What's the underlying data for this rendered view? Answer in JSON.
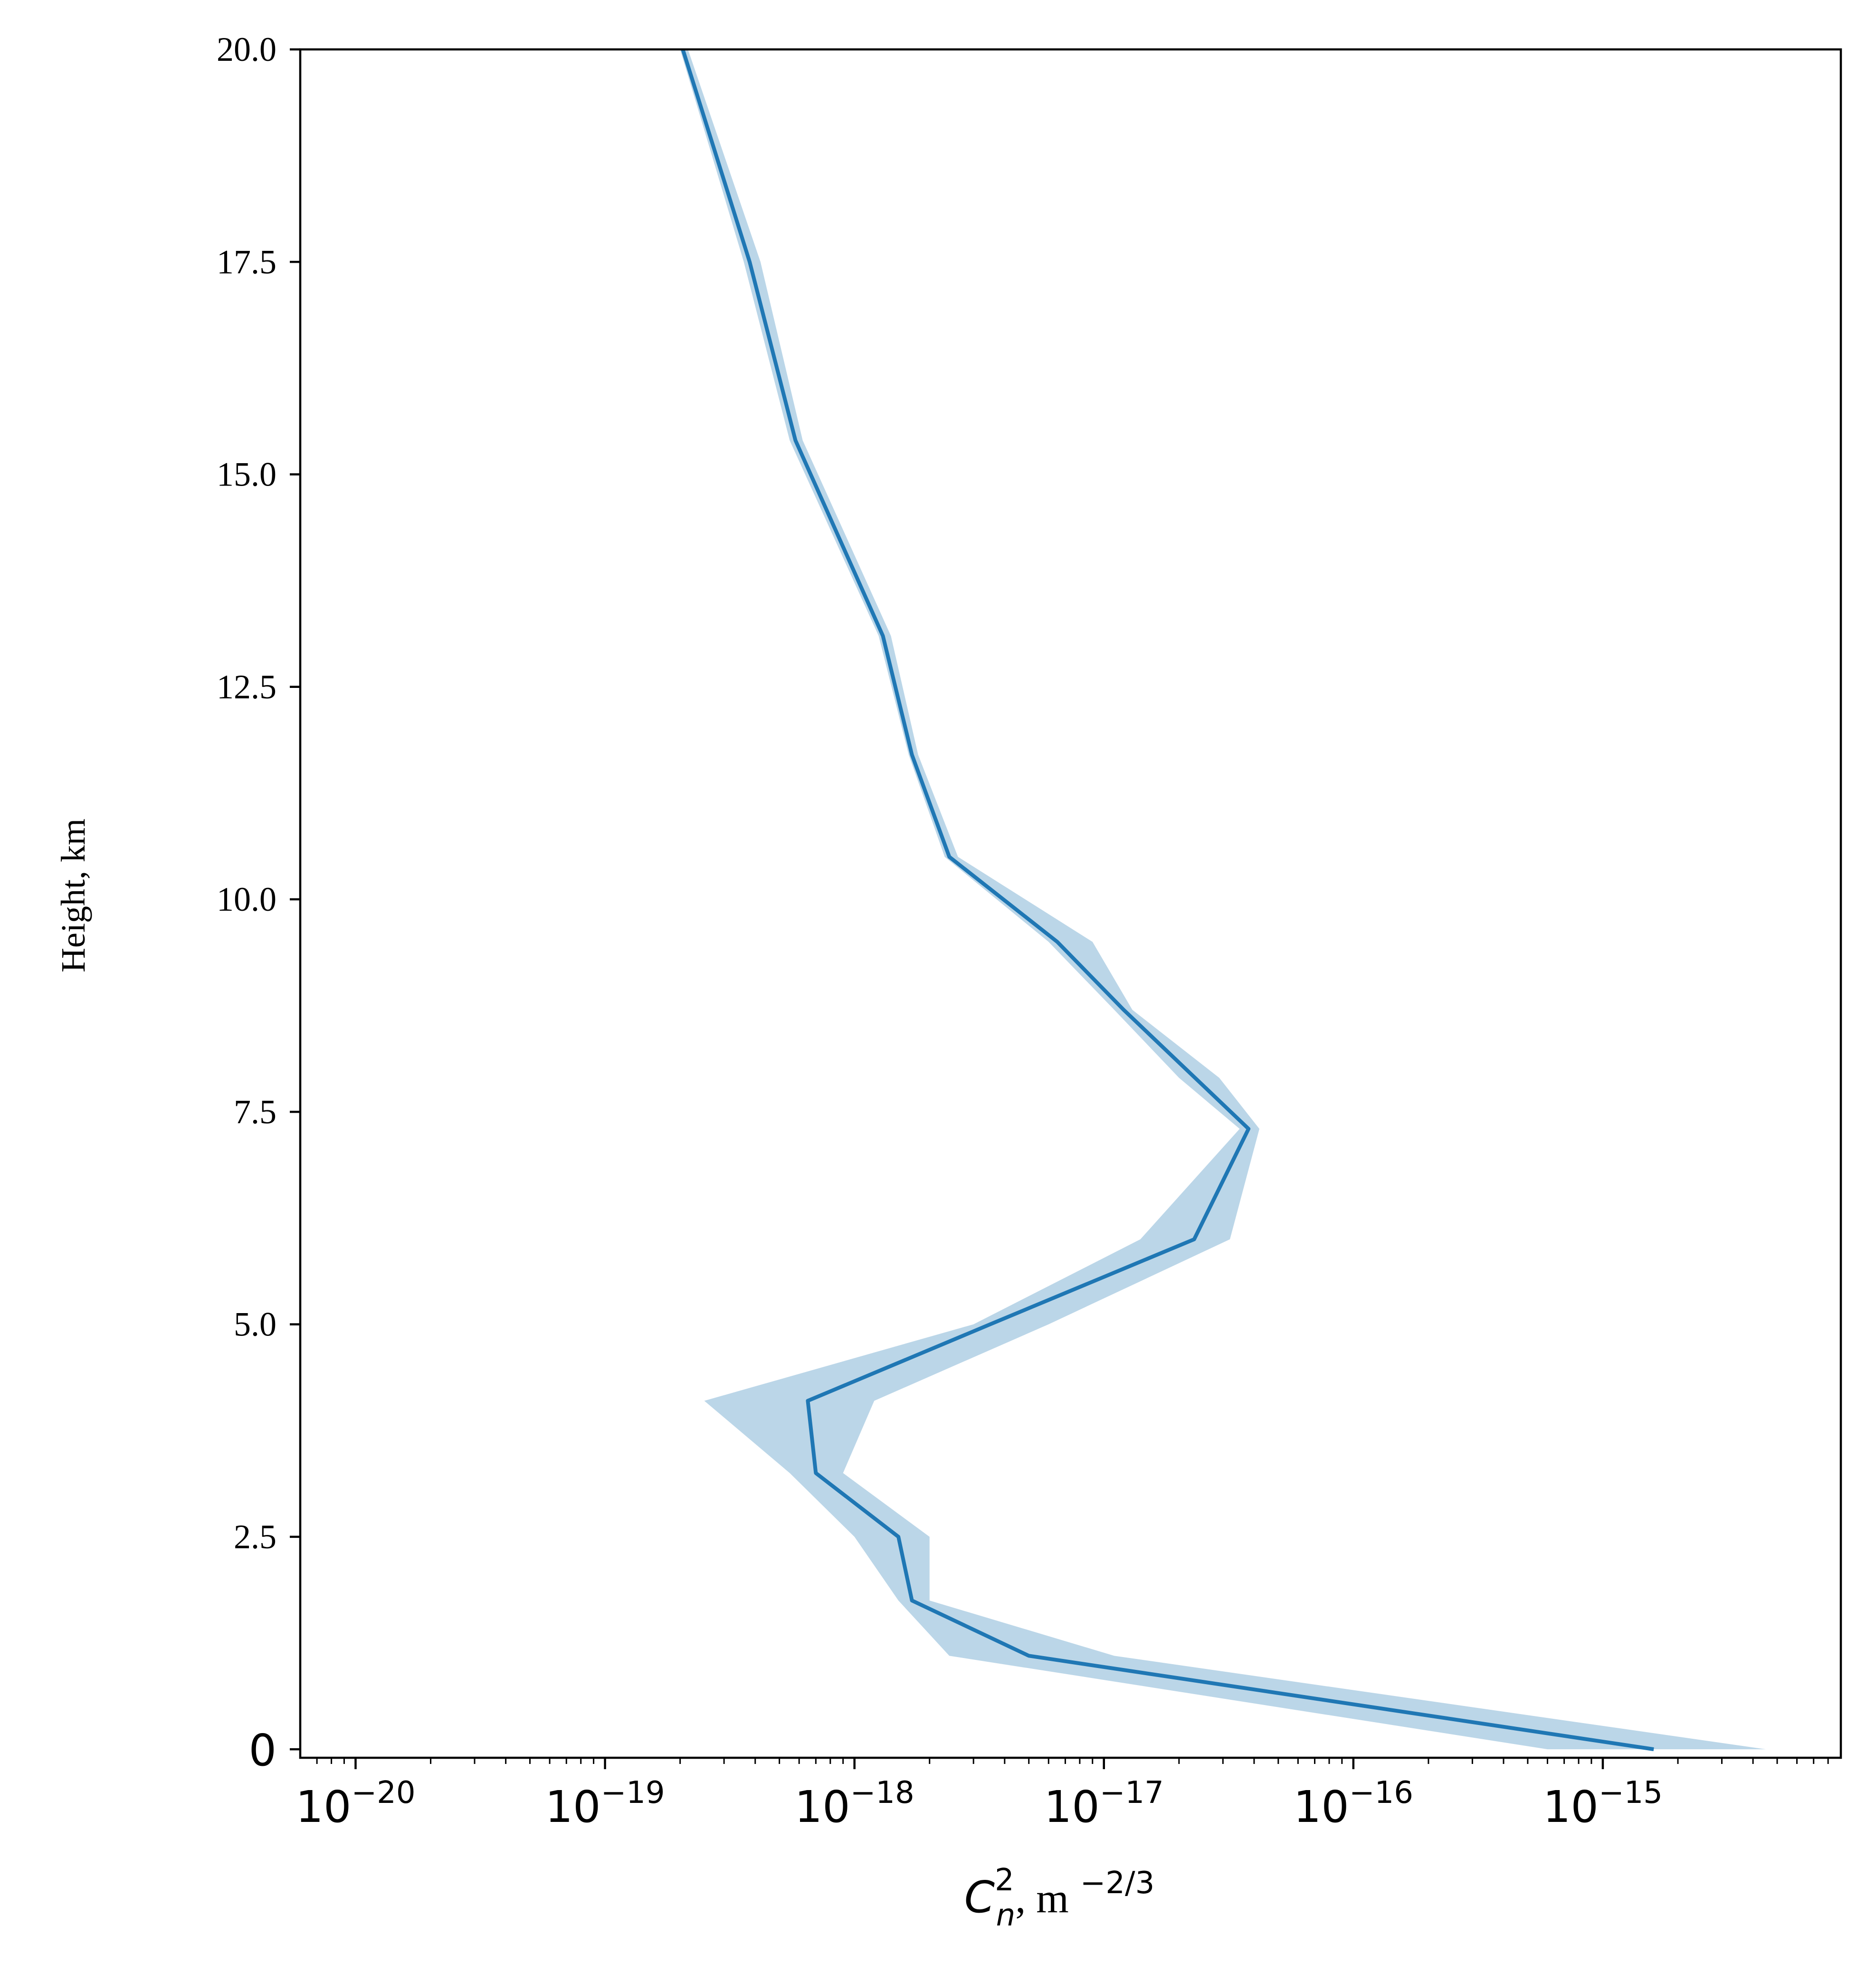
{
  "chart_data": {
    "type": "line",
    "xscale": "log",
    "xlim": [
      6e-21,
      9e-15
    ],
    "ylim": [
      -0.1,
      20.0
    ],
    "xlabel_parts": {
      "base": "C",
      "sup": "2",
      "sub": "n",
      "rest": ", m",
      "exp": "−2/3"
    },
    "ylabel": "Height, km",
    "y_ticks": [
      {
        "value": 0,
        "label": "0"
      },
      {
        "value": 2.5,
        "label": "2.5"
      },
      {
        "value": 5.0,
        "label": "5.0"
      },
      {
        "value": 7.5,
        "label": "7.5"
      },
      {
        "value": 10.0,
        "label": "10.0"
      },
      {
        "value": 12.5,
        "label": "12.5"
      },
      {
        "value": 15.0,
        "label": "15.0"
      },
      {
        "value": 17.5,
        "label": "17.5"
      },
      {
        "value": 20.0,
        "label": "20.0"
      }
    ],
    "x_major_ticks": [
      {
        "exp": -20,
        "base": "10",
        "sup": "−20"
      },
      {
        "exp": -19,
        "base": "10",
        "sup": "−19"
      },
      {
        "exp": -18,
        "base": "10",
        "sup": "−18"
      },
      {
        "exp": -17,
        "base": "10",
        "sup": "−17"
      },
      {
        "exp": -16,
        "base": "10",
        "sup": "−16"
      },
      {
        "exp": -15,
        "base": "10",
        "sup": "−15"
      }
    ],
    "grid": false,
    "line_color": "#1f77b4",
    "band_color": "#1f77b4",
    "band_opacity": 0.3,
    "series": [
      {
        "points": [
          {
            "height": 0.0,
            "cn2": 1.6e-15
          },
          {
            "height": 1.1,
            "cn2": 5e-18
          },
          {
            "height": 1.75,
            "cn2": 1.7e-18
          },
          {
            "height": 2.5,
            "cn2": 1.5e-18
          },
          {
            "height": 3.25,
            "cn2": 7e-19
          },
          {
            "height": 4.1,
            "cn2": 6.5e-19
          },
          {
            "height": 5.0,
            "cn2": 3.5e-18
          },
          {
            "height": 6.0,
            "cn2": 2.3e-17
          },
          {
            "height": 7.3,
            "cn2": 3.8e-17
          },
          {
            "height": 8.7,
            "cn2": 1.2e-17
          },
          {
            "height": 9.5,
            "cn2": 6.5e-18
          },
          {
            "height": 10.5,
            "cn2": 2.4e-18
          },
          {
            "height": 11.7,
            "cn2": 1.7e-18
          },
          {
            "height": 13.1,
            "cn2": 1.3e-18
          },
          {
            "height": 15.4,
            "cn2": 5.8e-19
          },
          {
            "height": 17.5,
            "cn2": 3.8e-19
          },
          {
            "height": 20.0,
            "cn2": 2.05e-19
          }
        ],
        "band": [
          {
            "height": 0.0,
            "low": 6e-16,
            "high": 4.5e-15
          },
          {
            "height": 1.1,
            "low": 2.4e-18,
            "high": 1.1e-17
          },
          {
            "height": 1.75,
            "low": 1.5e-18,
            "high": 2e-18
          },
          {
            "height": 2.5,
            "low": 1e-18,
            "high": 2e-18
          },
          {
            "height": 3.25,
            "low": 5.5e-19,
            "high": 9e-19
          },
          {
            "height": 4.1,
            "low": 2.5e-19,
            "high": 1.2e-18
          },
          {
            "height": 5.0,
            "low": 3e-18,
            "high": 6e-18
          },
          {
            "height": 6.0,
            "low": 1.4e-17,
            "high": 3.2e-17
          },
          {
            "height": 7.3,
            "low": 3.5e-17,
            "high": 4.2e-17
          },
          {
            "height": 7.9,
            "low": 2e-17,
            "high": 2.9e-17
          },
          {
            "height": 8.7,
            "low": 1.1e-17,
            "high": 1.3e-17
          },
          {
            "height": 9.5,
            "low": 6e-18,
            "high": 9e-18
          },
          {
            "height": 10.5,
            "low": 2.3e-18,
            "high": 2.6e-18
          },
          {
            "height": 11.7,
            "low": 1.65e-18,
            "high": 1.8e-18
          },
          {
            "height": 13.1,
            "low": 1.25e-18,
            "high": 1.4e-18
          },
          {
            "height": 15.4,
            "low": 5.5e-19,
            "high": 6.2e-19
          },
          {
            "height": 17.5,
            "low": 3.6e-19,
            "high": 4.2e-19
          },
          {
            "height": 20.0,
            "low": 2e-19,
            "high": 2.15e-19
          }
        ]
      }
    ]
  }
}
